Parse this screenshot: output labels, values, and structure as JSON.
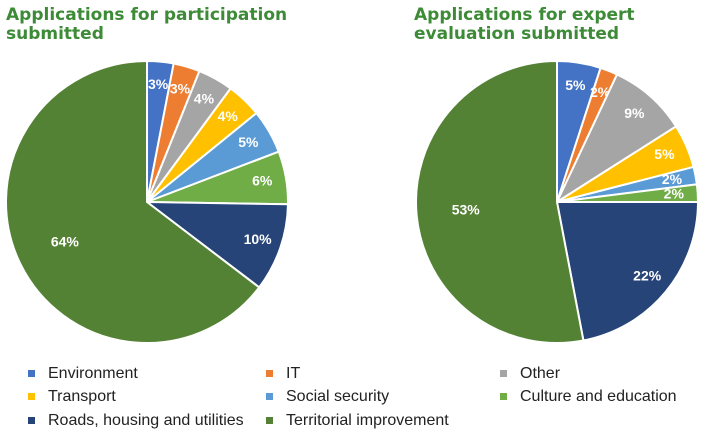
{
  "chart_data": [
    {
      "type": "pie",
      "title": "Applications for participation submitted",
      "categories": [
        "Environment",
        "IT",
        "Other",
        "Transport",
        "Social security",
        "Culture and education",
        "Roads, housing and utilities",
        "Territorial improvement"
      ],
      "values": [
        3,
        3,
        4,
        4,
        5,
        6,
        10,
        64
      ],
      "value_labels": [
        "3%",
        "3%",
        "4%",
        "4%",
        "5%",
        "6%",
        "10%",
        "64%"
      ],
      "colors": [
        "#4472c4",
        "#ed7d31",
        "#a5a5a5",
        "#ffc000",
        "#5b9bd5",
        "#70ad47",
        "#264478",
        "#548235"
      ]
    },
    {
      "type": "pie",
      "title": "Applications for expert evaluation submitted",
      "categories": [
        "Environment",
        "IT",
        "Other",
        "Transport",
        "Social security",
        "Culture and education",
        "Roads, housing and utilities",
        "Territorial improvement"
      ],
      "values": [
        5,
        2,
        9,
        5,
        2,
        2,
        22,
        53
      ],
      "value_labels": [
        "5%",
        "2%",
        "9%",
        "5%",
        "2%",
        "2%",
        "22%",
        "53%"
      ],
      "colors": [
        "#4472c4",
        "#ed7d31",
        "#a5a5a5",
        "#ffc000",
        "#5b9bd5",
        "#70ad47",
        "#264478",
        "#548235"
      ]
    }
  ]
}
